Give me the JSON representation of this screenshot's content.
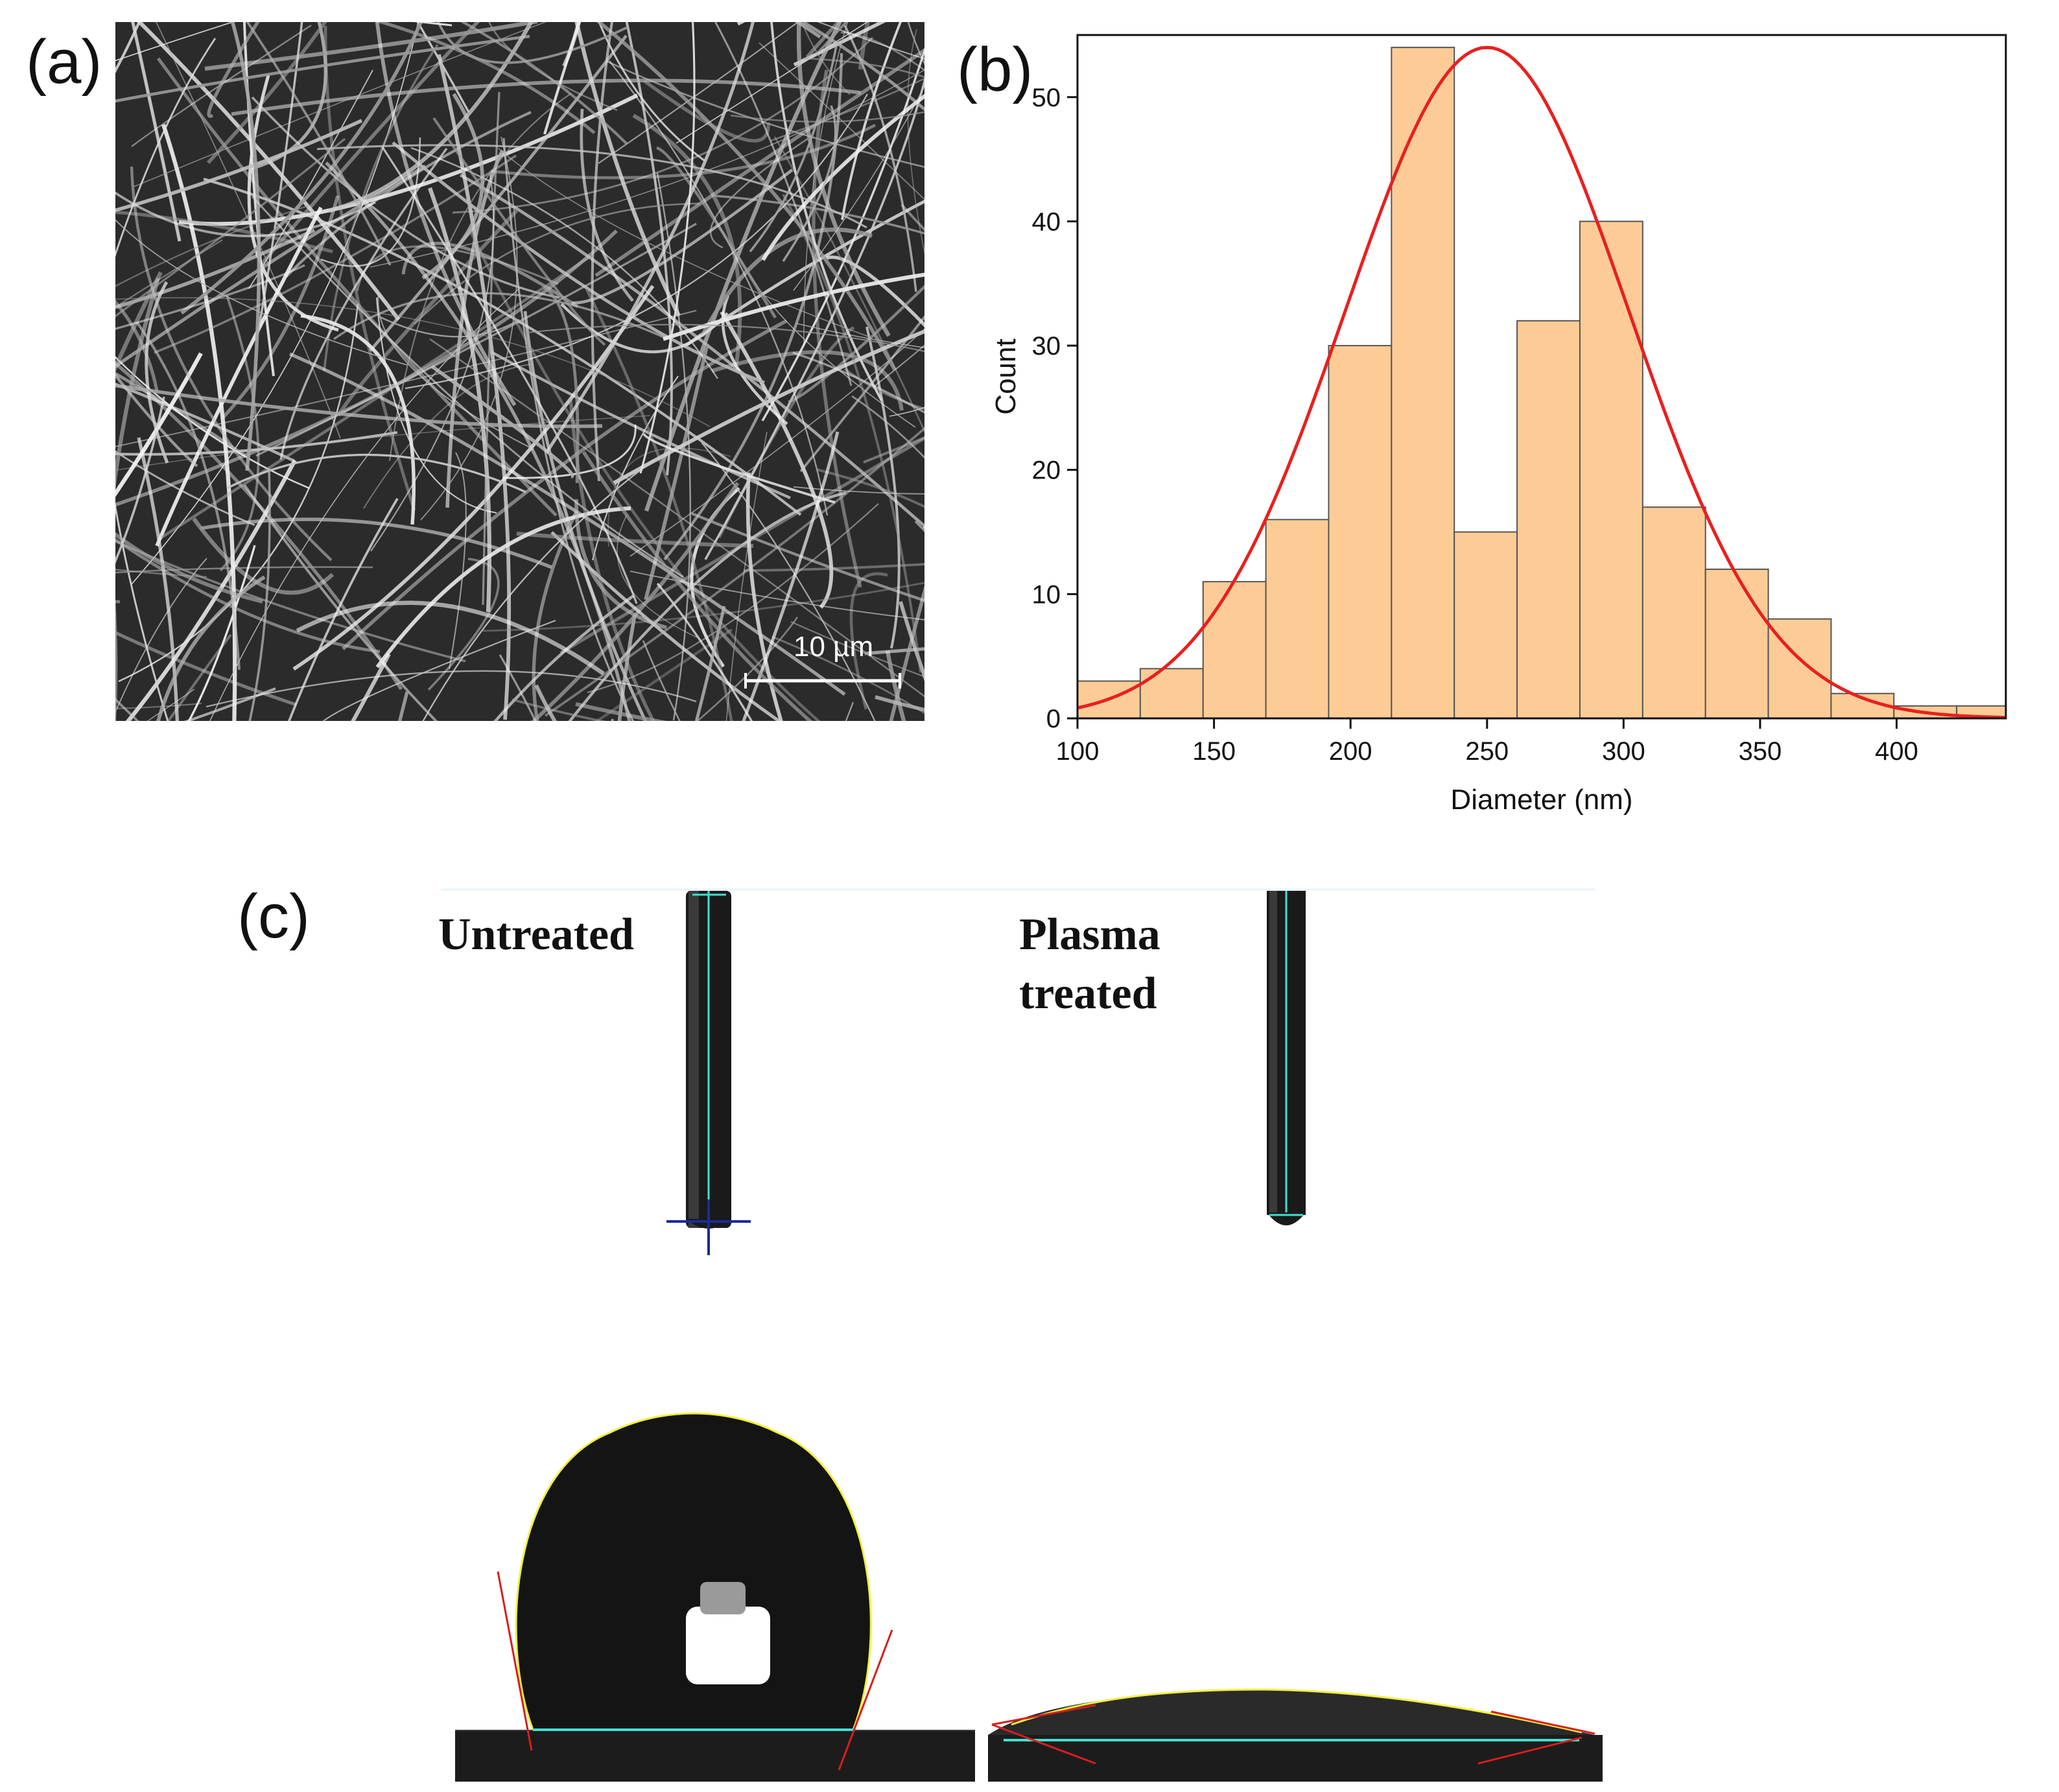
{
  "panels": {
    "a": {
      "letter": "(a)",
      "scale_bar_label": "10 µm"
    },
    "b": {
      "letter": "(b)"
    },
    "c": {
      "letter": "(c)",
      "untreated_label": "Untreated",
      "plasma_label": "Plasma\ntreated"
    }
  },
  "colors": {
    "bar_fill": "#fdcc96",
    "bar_stroke": "#555555",
    "fit_line": "#e8201f",
    "baseline_line": "#40e0d0",
    "tangent_line": "#d81e1e",
    "profile_line": "#f0f040"
  },
  "chart_data": {
    "type": "bar",
    "subtype": "histogram-with-normal-fit",
    "xlabel": "Diameter (nm)",
    "ylabel": "Count",
    "xlim": [
      100,
      440
    ],
    "ylim": [
      0,
      55
    ],
    "xticks": [
      100,
      150,
      200,
      250,
      300,
      350,
      400
    ],
    "yticks": [
      0,
      10,
      20,
      30,
      40,
      50
    ],
    "bin_edges": [
      100,
      123,
      146,
      169,
      192,
      215,
      238,
      261,
      284,
      307,
      330,
      353,
      376,
      399,
      422,
      445
    ],
    "values": [
      3,
      4,
      11,
      16,
      30,
      54,
      15,
      32,
      40,
      17,
      12,
      8,
      2,
      1,
      1
    ],
    "fit": {
      "type": "normal",
      "mean": 250,
      "sigma": 52,
      "peak": 54
    },
    "grid": false,
    "legend": "none"
  }
}
